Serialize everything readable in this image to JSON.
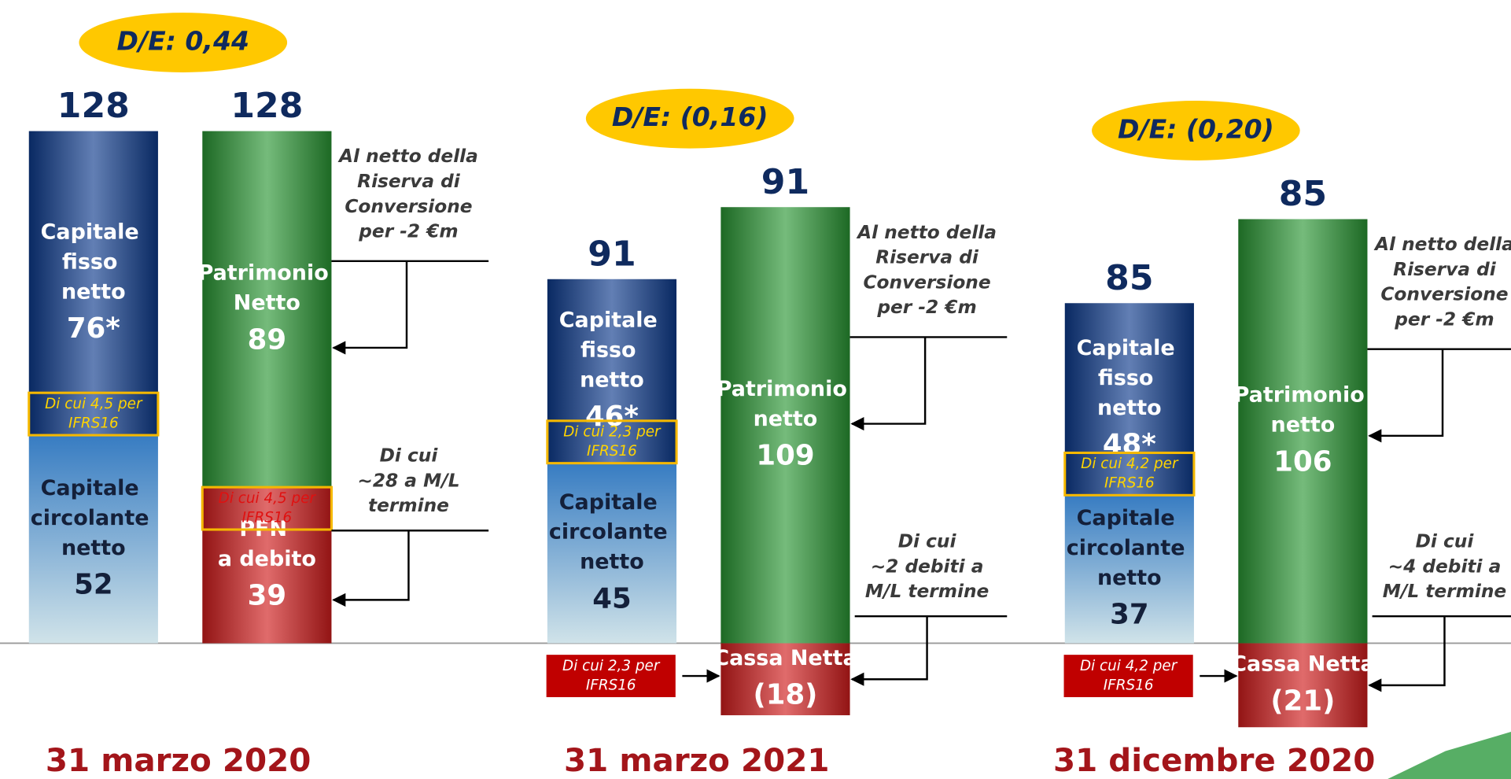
{
  "chart_data": [
    {
      "type": "bar",
      "stacked": true,
      "title": "31 marzo 2020",
      "ratio": "D/E: 0,44",
      "categories": [
        null,
        null
      ],
      "totals": [
        128,
        128
      ],
      "series": [
        {
          "name": "Capitale fisso netto",
          "color": "#0d3a8c",
          "values": [
            76,
            null
          ],
          "value_labels": [
            "76*",
            null
          ]
        },
        {
          "name": "Capitale circolante netto",
          "color": "#3a82cc",
          "values": [
            52,
            null
          ]
        },
        {
          "name": "Patrimonio Netto",
          "color": "#2a9634",
          "values": [
            null,
            89
          ]
        },
        {
          "name": "PFN a debito",
          "color": "#d01c1c",
          "values": [
            null,
            39
          ]
        }
      ],
      "notes": {
        "ifrs": [
          [
            "Di cui 4,5 per",
            "IFRS16"
          ],
          [
            "Di cui 4,5 per",
            "IFRS16"
          ]
        ],
        "equity": [
          "Al netto della",
          "Riserva di",
          "Conversione",
          "per -2 €m"
        ],
        "debt": [
          "Di cui",
          "~28 a M/L",
          "termine"
        ]
      }
    },
    {
      "type": "bar",
      "stacked": true,
      "title": "31 marzo 2021",
      "ratio": "D/E: (0,16)",
      "categories": [
        null,
        null
      ],
      "totals": [
        91,
        91
      ],
      "series": [
        {
          "name": "Capitale fisso netto",
          "color": "#0d3a8c",
          "values": [
            46,
            null
          ],
          "value_labels": [
            "46*",
            null
          ]
        },
        {
          "name": "Capitale circolante netto",
          "color": "#3a82cc",
          "values": [
            45,
            null
          ]
        },
        {
          "name": "Patrimonio netto",
          "color": "#2a9634",
          "values": [
            null,
            109
          ]
        },
        {
          "name": "Cassa Netta",
          "color": "#d01c1c",
          "values": [
            null,
            -18
          ],
          "value_labels": [
            null,
            "(18)"
          ]
        }
      ],
      "notes": {
        "ifrs": [
          [
            "Di cui 2,3 per",
            "IFRS16"
          ],
          [
            "Di cui 2,3 per",
            "IFRS16"
          ]
        ],
        "equity": [
          "Al netto della",
          "Riserva di",
          "Conversione",
          "per -2 €m"
        ],
        "debt": [
          "Di cui",
          "~2 debiti a",
          "M/L termine"
        ]
      }
    },
    {
      "type": "bar",
      "stacked": true,
      "title": "31 dicembre 2020",
      "ratio": "D/E: (0,20)",
      "categories": [
        null,
        null
      ],
      "totals": [
        85,
        85
      ],
      "series": [
        {
          "name": "Capitale fisso netto",
          "color": "#0d3a8c",
          "values": [
            48,
            null
          ],
          "value_labels": [
            "48*",
            null
          ]
        },
        {
          "name": "Capitale circolante netto",
          "color": "#3a82cc",
          "values": [
            37,
            null
          ]
        },
        {
          "name": "Patrimonio netto",
          "color": "#2a9634",
          "values": [
            null,
            106
          ]
        },
        {
          "name": "Cassa Netta",
          "color": "#d01c1c",
          "values": [
            null,
            -21
          ],
          "value_labels": [
            null,
            "(21)"
          ]
        }
      ],
      "notes": {
        "ifrs": [
          [
            "Di cui 4,2 per",
            "IFRS16"
          ],
          [
            "Di cui 4,2 per",
            "IFRS16"
          ]
        ],
        "equity": [
          "Al netto della",
          "Riserva di",
          "Conversione",
          "per -2 €m"
        ],
        "debt": [
          "Di cui",
          "~4 debiti a",
          "M/L termine"
        ]
      }
    }
  ]
}
